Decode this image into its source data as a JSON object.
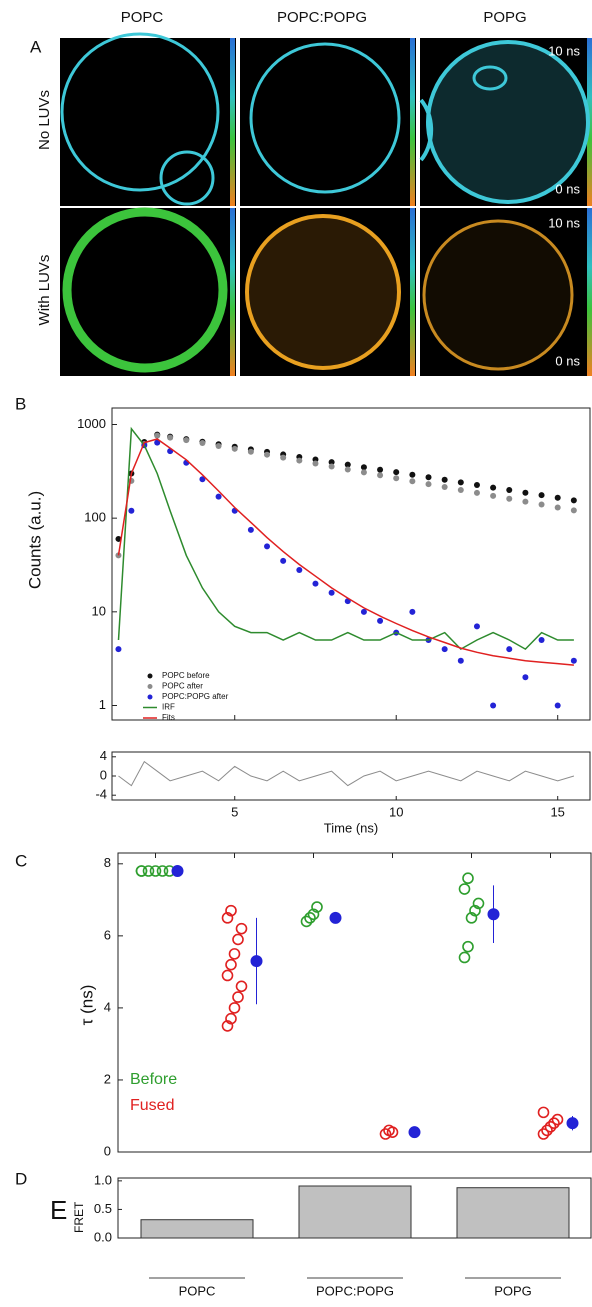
{
  "panel_a": {
    "label": "A",
    "columns": [
      "POPC",
      "POPC:POPG",
      "POPG"
    ],
    "rows": [
      "No LUVs",
      "With LUVs"
    ],
    "scale_top": "10 ns",
    "scale_bottom": "0 ns"
  },
  "chart_data": [
    {
      "type": "line",
      "panel": "B",
      "ylabel": "Counts (a.u.)",
      "xlabel": "Time (ns)",
      "log_y": true,
      "legend": "lower left",
      "x": [
        1.4,
        1.8,
        2.2,
        2.6,
        3.0,
        3.5,
        4.0,
        4.5,
        5.0,
        5.5,
        6.0,
        6.5,
        7.0,
        7.5,
        8.0,
        8.5,
        9.0,
        9.5,
        10.0,
        10.5,
        11.0,
        11.5,
        12.0,
        12.5,
        13.0,
        13.5,
        14.0,
        14.5,
        15.0,
        15.5
      ],
      "series": [
        {
          "name": "POPC before",
          "color": "#111111",
          "mode": "scatter",
          "values": [
            60,
            300,
            650,
            780,
            742,
            697,
            655,
            615,
            578,
            543,
            510,
            479,
            450,
            423,
            397,
            373,
            350,
            329,
            310,
            291,
            273,
            257,
            241,
            226,
            212,
            200,
            187,
            176,
            165,
            155
          ]
        },
        {
          "name": "POPC after",
          "color": "#8c8c8c",
          "mode": "scatter",
          "values": [
            40,
            250,
            620,
            760,
            725,
            680,
            635,
            590,
            550,
            512,
            476,
            443,
            412,
            383,
            356,
            331,
            308,
            287,
            267,
            248,
            231,
            215,
            200,
            186,
            173,
            161,
            150,
            140,
            130,
            121
          ]
        },
        {
          "name": "POPC:POPG after",
          "color": "#2323d6",
          "mode": "scatter",
          "values": [
            4,
            120,
            600,
            640,
            520,
            390,
            260,
            170,
            120,
            75,
            50,
            35,
            28,
            20,
            16,
            13,
            10,
            8,
            6,
            10,
            5,
            4,
            3,
            7,
            1,
            4,
            2,
            5,
            1,
            3
          ]
        },
        {
          "name": "IRF",
          "color": "#2e8b2e",
          "mode": "line",
          "values": [
            5,
            900,
            600,
            300,
            120,
            40,
            18,
            10,
            7,
            6,
            6,
            5,
            6,
            5,
            5,
            6,
            5,
            5,
            6,
            5,
            5,
            6,
            4,
            5,
            6,
            5,
            4,
            6,
            5,
            5
          ]
        },
        {
          "name": "Fits",
          "color": "#e02020",
          "mode": "line",
          "values": [
            40,
            300,
            640,
            700,
            560,
            420,
            290,
            195,
            130,
            90,
            62,
            44,
            32,
            24,
            18,
            14,
            11,
            9,
            7.5,
            6.3,
            5.4,
            4.7,
            4.1,
            3.7,
            3.4,
            3.2,
            3.0,
            2.9,
            2.8,
            2.7
          ]
        }
      ],
      "xlim": [
        1.2,
        16.0
      ],
      "xticks": [
        5,
        10,
        15
      ],
      "ylim": [
        0.7,
        1500
      ],
      "yticks": [
        1,
        10,
        100,
        1000
      ],
      "residuals": [
        0,
        -2,
        3,
        1,
        -1,
        0,
        1,
        -1,
        2,
        0,
        -1,
        1,
        -1,
        0,
        1,
        -2,
        0,
        1,
        -1,
        0,
        1,
        0,
        -1,
        1,
        0,
        -1,
        1,
        0,
        -1,
        0
      ],
      "residual_color": "#8c8c8c",
      "residual_ylim": [
        -5,
        5
      ],
      "residual_yticks": [
        4,
        0,
        -4
      ]
    },
    {
      "type": "scatter",
      "panel": "C",
      "ylabel": "τ (ns)",
      "categories": [
        null,
        null,
        null,
        null,
        null,
        null
      ],
      "series": [
        {
          "name": "Before",
          "color": "#2e9e2e",
          "values": [
            [
              7.8,
              7.8,
              7.8,
              7.8,
              7.8,
              7.8
            ],
            null,
            [
              6.4,
              6.5,
              6.6,
              6.8
            ],
            null,
            [
              5.4,
              5.7,
              6.5,
              6.7,
              6.9,
              7.3,
              7.6
            ],
            null
          ]
        },
        {
          "name": "Fused",
          "color": "#e02020",
          "values": [
            null,
            [
              3.5,
              3.7,
              4.0,
              4.3,
              4.6,
              4.9,
              5.2,
              5.5,
              5.9,
              6.2,
              6.5,
              6.7
            ],
            null,
            [
              0.5,
              0.6,
              0.55
            ],
            null,
            [
              0.5,
              0.6,
              0.7,
              0.8,
              0.9,
              1.1
            ]
          ]
        }
      ],
      "means": [
        7.8,
        5.3,
        6.5,
        0.55,
        6.6,
        0.8
      ],
      "errors": [
        0.05,
        1.2,
        0.15,
        0.05,
        0.8,
        0.2
      ],
      "mean_color": "#2323d6",
      "ylim": [
        0,
        8.3
      ],
      "yticks": [
        0,
        2,
        4,
        6,
        8
      ]
    },
    {
      "type": "bar",
      "panel": "D",
      "ylabel": "E",
      "ylabel_sub": "FRET",
      "categories": [
        "POPC",
        "POPC:POPG",
        "POPG"
      ],
      "values": [
        0.32,
        0.91,
        0.88
      ],
      "color": "#c0c0c0",
      "ylim": [
        0,
        1.05
      ],
      "yticks": [
        {
          "value": 0,
          "label": "0.0"
        },
        {
          "value": 0.5,
          "label": "0.5"
        },
        {
          "value": 1,
          "label": "1.0"
        }
      ]
    }
  ]
}
